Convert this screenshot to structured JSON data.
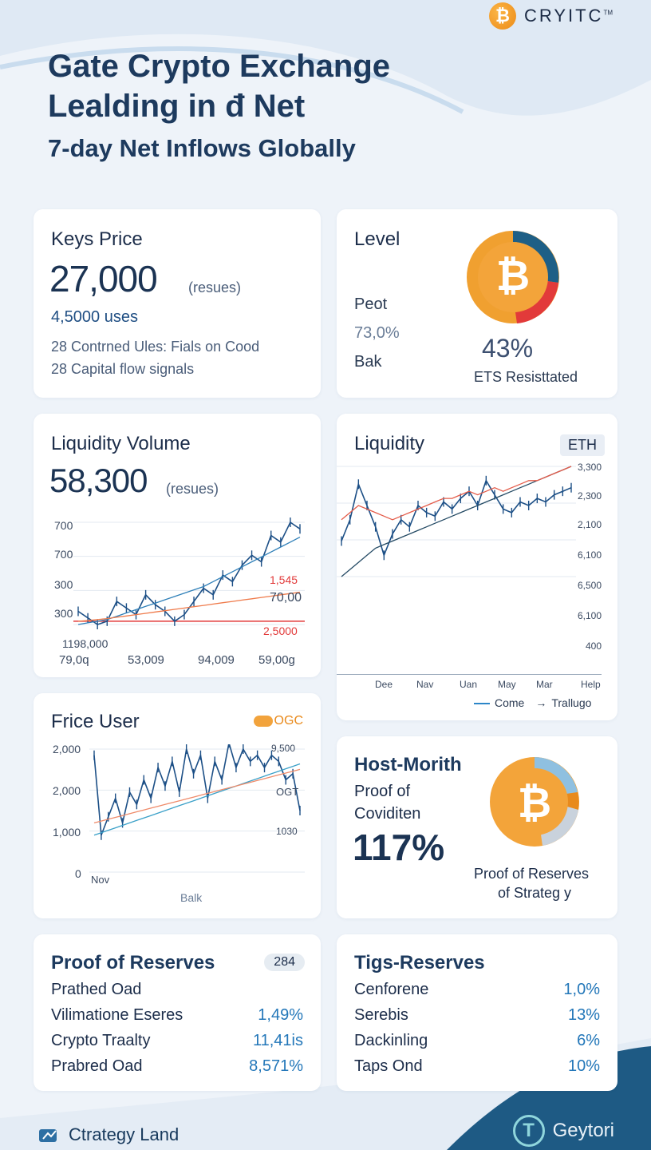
{
  "brand": {
    "name": "CRYITC",
    "mark": "TM",
    "coin_symbol": "₿"
  },
  "hero": {
    "title_line1": "Gate Crypto Exchange",
    "title_line2": "Lealding in đ Net",
    "subtitle": "7-day Net Inflows Globally"
  },
  "card_key_price": {
    "title": "Keys Price",
    "value": "27,000",
    "value_note": "(resues)",
    "sub": "4,5000 uses",
    "lines": [
      "28 Contrned Ules: Fials on Cood",
      "28 Capital flow signals"
    ]
  },
  "card_level": {
    "title": "Level",
    "row1": "Peot",
    "row2": "73,0%",
    "row3": "Bak",
    "pct": "43%",
    "caption": "ETS Resisttated",
    "coin_symbol": "₿",
    "ring_colors": [
      "#1e5f86",
      "#e23a3a",
      "#f0a030"
    ]
  },
  "card_liquidity_volume": {
    "title": "Liquidity Volume",
    "value": "58,300",
    "value_note": "(resues)",
    "y_labels": [
      "700",
      "700",
      "300",
      "300"
    ],
    "left_value": "1198,000",
    "x_labels": [
      "79,0q",
      "53,009",
      "94,009",
      "59,00g"
    ],
    "right_labels": [
      "1,545",
      "70,00",
      "2,5000"
    ]
  },
  "card_liquidity": {
    "title": "Liquidity",
    "badge": "ETH",
    "y_labels": [
      "3,300",
      "2,300",
      "2,100",
      "6,100",
      "6,500",
      "6,100",
      "400"
    ],
    "x_labels": [
      "Dee",
      "Nav",
      "Uan",
      "May",
      "Mar",
      "Help"
    ],
    "legend": [
      "Come",
      "Trallugo"
    ]
  },
  "card_price_user": {
    "title": "Frice User",
    "badge": "OGC",
    "y_labels": [
      "2,000",
      "2,000",
      "1,000",
      "0"
    ],
    "right_labels": [
      "9,500",
      "OGT",
      "1030"
    ],
    "x_label": "Nov",
    "bottom_label": "Balk"
  },
  "card_host_month": {
    "title": "Host-Morith",
    "line1": "Proof of",
    "line2": "Coviditen",
    "pct": "117%",
    "caption1": "Proof of Reserves",
    "caption2": "of Strateg y",
    "coin_symbol": "₿"
  },
  "card_proof_reserves": {
    "title": "Proof of Reserves",
    "badge": "284",
    "rows": [
      {
        "label": "Prathed Oad",
        "value": ""
      },
      {
        "label": "Vilimatione Eseres",
        "value": "1,49%"
      },
      {
        "label": "Crypto Traalty",
        "value": "11,41is"
      },
      {
        "label": "Prabred Oad",
        "value": "8,571%"
      }
    ]
  },
  "card_tigs_reserves": {
    "title": "Tigs-Reserves",
    "rows": [
      {
        "label": "Cenforene",
        "value": "1,0%"
      },
      {
        "label": "Serebis",
        "value": "13%"
      },
      {
        "label": "Dackinling",
        "value": "6%"
      },
      {
        "label": "Taps Ond",
        "value": "10%"
      }
    ]
  },
  "footer": {
    "left": "Ctrategy Land",
    "right": "Geytori"
  },
  "chart_data": [
    {
      "type": "line",
      "title": "Liquidity Volume",
      "x": [
        0,
        1,
        2,
        3,
        4,
        5,
        6,
        7,
        8,
        9,
        10,
        11,
        12,
        13,
        14,
        15,
        16,
        17,
        18,
        19,
        20,
        21,
        22,
        23
      ],
      "series": [
        {
          "values": [
            330,
            310,
            290,
            300,
            360,
            340,
            320,
            380,
            350,
            330,
            300,
            320,
            360,
            400,
            380,
            440,
            420,
            470,
            500,
            480,
            560,
            540,
            600,
            580
          ]
        },
        {
          "values": [
            290,
            295,
            300,
            305,
            315,
            325,
            335,
            345,
            355,
            365,
            375,
            385,
            395,
            405,
            420,
            435,
            450,
            465,
            480,
            495,
            510,
            525,
            540,
            555
          ]
        },
        {
          "values": [
            300,
            302,
            305,
            308,
            312,
            316,
            320,
            324,
            328,
            332,
            336,
            340,
            344,
            348,
            352,
            356,
            360,
            364,
            368,
            372,
            376,
            380,
            384,
            388
          ]
        }
      ],
      "reference_line": 300
    },
    {
      "type": "line",
      "title": "Liquidity",
      "x": [
        0,
        1,
        2,
        3,
        4,
        5,
        6,
        7,
        8,
        9,
        10,
        11,
        12,
        13,
        14,
        15,
        16,
        17,
        18,
        19,
        20,
        21,
        22,
        23,
        24,
        25,
        26,
        27
      ],
      "series": [
        {
          "values": [
            2100,
            2400,
            2900,
            2600,
            2300,
            1900,
            2200,
            2400,
            2300,
            2600,
            2500,
            2450,
            2650,
            2550,
            2700,
            2800,
            2600,
            2950,
            2750,
            2550,
            2500,
            2650,
            2600,
            2700,
            2650,
            2750,
            2800,
            2850
          ]
        },
        {
          "values": [
            1600,
            1700,
            1800,
            1900,
            2000,
            2050,
            2100,
            2150,
            2200,
            2250,
            2300,
            2350,
            2400,
            2450,
            2500,
            2550,
            2600,
            2650,
            2700,
            2750,
            2800,
            2850,
            2900,
            2950,
            3000,
            3050,
            3100,
            3150
          ]
        },
        {
          "values": [
            2400,
            2500,
            2600,
            2550,
            2500,
            2450,
            2400,
            2450,
            2500,
            2550,
            2600,
            2650,
            2700,
            2700,
            2750,
            2800,
            2750,
            2800,
            2850,
            2800,
            2850,
            2900,
            2950,
            2950,
            3000,
            3050,
            3100,
            3150
          ]
        }
      ]
    },
    {
      "type": "line",
      "title": "Frice User",
      "x": [
        0,
        1,
        2,
        3,
        4,
        5,
        6,
        7,
        8,
        9,
        10,
        11,
        12,
        13,
        14,
        15,
        16,
        17,
        18,
        19,
        20,
        21,
        22,
        23,
        24,
        25,
        26,
        27,
        28,
        29
      ],
      "series": [
        {
          "values": [
            1900,
            600,
            900,
            1200,
            800,
            1300,
            1100,
            1500,
            1200,
            1700,
            1400,
            1800,
            1300,
            2000,
            1600,
            1900,
            1200,
            1800,
            1500,
            2100,
            1700,
            2000,
            1800,
            1900,
            1700,
            1900,
            1800,
            1500,
            1600,
            1000
          ]
        },
        {
          "values": [
            600,
            640,
            680,
            720,
            760,
            800,
            840,
            880,
            920,
            960,
            1000,
            1040,
            1080,
            1120,
            1160,
            1200,
            1240,
            1280,
            1320,
            1360,
            1400,
            1440,
            1480,
            1520,
            1560,
            1600,
            1640,
            1680,
            1720,
            1760
          ]
        },
        {
          "values": [
            800,
            830,
            860,
            890,
            920,
            950,
            980,
            1010,
            1040,
            1070,
            1100,
            1130,
            1160,
            1190,
            1220,
            1250,
            1280,
            1310,
            1340,
            1370,
            1400,
            1430,
            1460,
            1490,
            1520,
            1550,
            1580,
            1610,
            1640,
            1670
          ]
        }
      ],
      "ylim": [
        0,
        2000
      ]
    }
  ]
}
